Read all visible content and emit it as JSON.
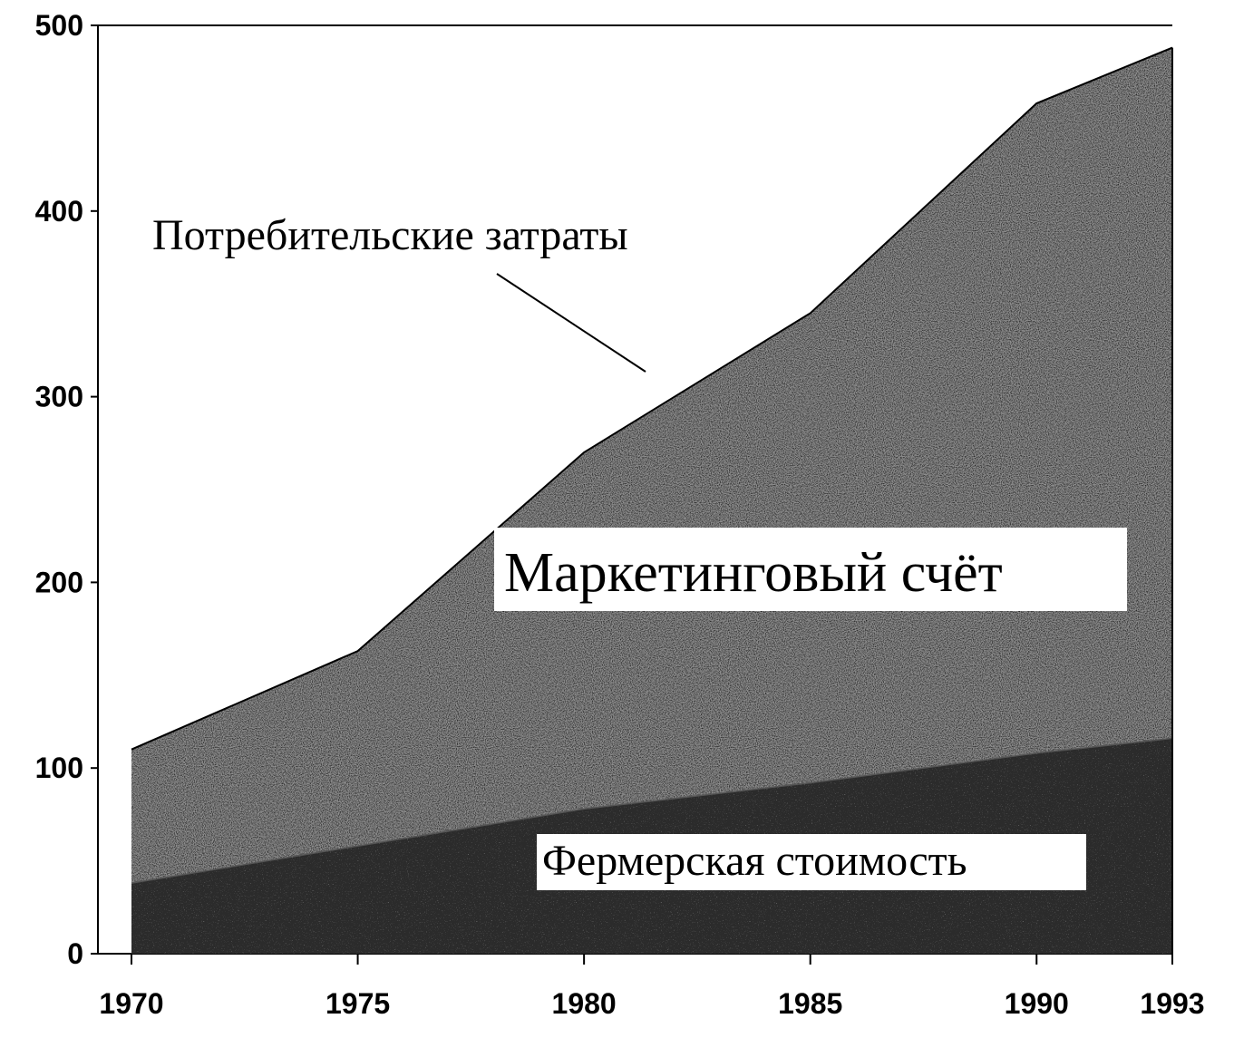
{
  "chart_data": {
    "type": "area",
    "x": [
      1970,
      1975,
      1980,
      1985,
      1990,
      1993
    ],
    "series": [
      {
        "values": [
          38,
          58,
          78,
          92,
          108,
          116
        ]
      },
      {
        "values": [
          110,
          163,
          270,
          345,
          458,
          488
        ]
      }
    ],
    "annotations": {
      "consumer": "Потребительские затраты",
      "marketing": "Маркетинговый счёт",
      "farm": "Фермерская стоимость"
    },
    "xticks": [
      "1970",
      "1975",
      "1980",
      "1985",
      "1990",
      "1993"
    ],
    "yticks": [
      "0",
      "100",
      "200",
      "300",
      "400",
      "500"
    ],
    "ylim": [
      0,
      500
    ],
    "xlim": [
      1970,
      1993
    ],
    "grid": false,
    "legend": "none",
    "colors": {
      "farm_fill": "#2b2b2b",
      "marketing_fill": "#8f8f8f",
      "line": "#000000",
      "background": "#ffffff"
    }
  }
}
